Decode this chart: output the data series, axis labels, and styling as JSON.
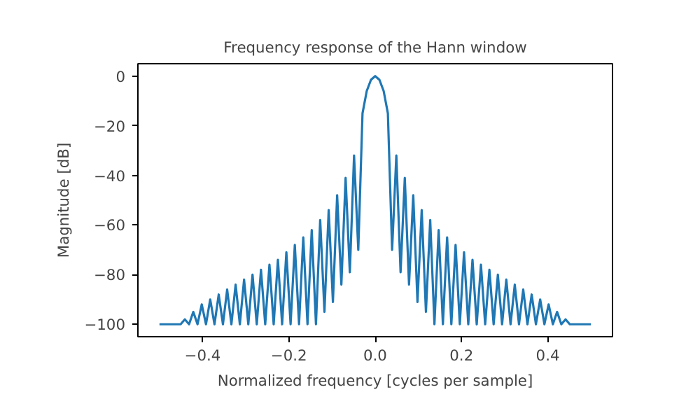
{
  "chart_data": {
    "type": "line",
    "title": "Frequency response of the Hann window",
    "xlabel": "Normalized frequency [cycles per sample]",
    "ylabel": "Magnitude [dB]",
    "x": [
      -0.5,
      -0.451,
      -0.4412,
      -0.4314,
      -0.4216,
      -0.4118,
      -0.402,
      -0.3922,
      -0.3824,
      -0.3725,
      -0.3627,
      -0.3529,
      -0.3431,
      -0.3333,
      -0.3235,
      -0.3137,
      -0.3039,
      -0.2941,
      -0.2843,
      -0.2745,
      -0.2647,
      -0.2549,
      -0.2451,
      -0.2353,
      -0.2255,
      -0.2157,
      -0.2059,
      -0.1961,
      -0.1863,
      -0.1765,
      -0.1667,
      -0.1569,
      -0.1471,
      -0.1373,
      -0.1275,
      -0.1176,
      -0.1078,
      -0.098,
      -0.0882,
      -0.0784,
      -0.0686,
      -0.0588,
      -0.049,
      -0.0392,
      -0.0294,
      -0.0196,
      -0.0098,
      0,
      0.0098,
      0.0196,
      0.0294,
      0.0392,
      0.049,
      0.0588,
      0.0686,
      0.0784,
      0.0882,
      0.098,
      0.1078,
      0.1176,
      0.1275,
      0.1373,
      0.1471,
      0.1569,
      0.1667,
      0.1765,
      0.1863,
      0.1961,
      0.2059,
      0.2157,
      0.2255,
      0.2353,
      0.2451,
      0.2549,
      0.2647,
      0.2745,
      0.2843,
      0.2941,
      0.3039,
      0.3137,
      0.3235,
      0.3333,
      0.3431,
      0.3529,
      0.3627,
      0.3725,
      0.3824,
      0.3922,
      0.402,
      0.4118,
      0.4216,
      0.4314,
      0.4412,
      0.451,
      0.5
    ],
    "series": [
      {
        "color": "#1f77b4",
        "values": [
          -100,
          -100,
          -98,
          -100,
          -95,
          -100,
          -92,
          -100,
          -90,
          -100,
          -88,
          -100,
          -86,
          -100,
          -84,
          -100,
          -82,
          -100,
          -80,
          -100,
          -78,
          -100,
          -76,
          -100,
          -74,
          -100,
          -71,
          -100,
          -68,
          -100,
          -65,
          -100,
          -62,
          -100,
          -58,
          -95,
          -54,
          -91,
          -48,
          -84,
          -41,
          -79,
          -32,
          -70,
          -15,
          -6,
          -1.5,
          0,
          -1.5,
          -6,
          -15,
          -70,
          -32,
          -79,
          -41,
          -84,
          -48,
          -91,
          -54,
          -95,
          -58,
          -100,
          -62,
          -100,
          -65,
          -100,
          -68,
          -100,
          -71,
          -100,
          -74,
          -100,
          -76,
          -100,
          -78,
          -100,
          -80,
          -100,
          -82,
          -100,
          -84,
          -100,
          -86,
          -100,
          -88,
          -100,
          -90,
          -100,
          -92,
          -100,
          -95,
          -100,
          -98,
          -100,
          -100
        ]
      }
    ],
    "xlim": [
      -0.55,
      0.55
    ],
    "ylim": [
      -105,
      5
    ],
    "xticks": [
      {
        "value": -0.4,
        "label": "−0.4"
      },
      {
        "value": -0.2,
        "label": "−0.2"
      },
      {
        "value": 0,
        "label": "0.0"
      },
      {
        "value": 0.2,
        "label": "0.2"
      },
      {
        "value": 0.4,
        "label": "0.4"
      }
    ],
    "yticks": [
      {
        "value": -100,
        "label": "−100"
      },
      {
        "value": -80,
        "label": "−80"
      },
      {
        "value": -60,
        "label": "−60"
      },
      {
        "value": -40,
        "label": "−40"
      },
      {
        "value": -20,
        "label": "−20"
      },
      0
    ],
    "grid": false,
    "marker": "none",
    "line_style": "solid"
  }
}
